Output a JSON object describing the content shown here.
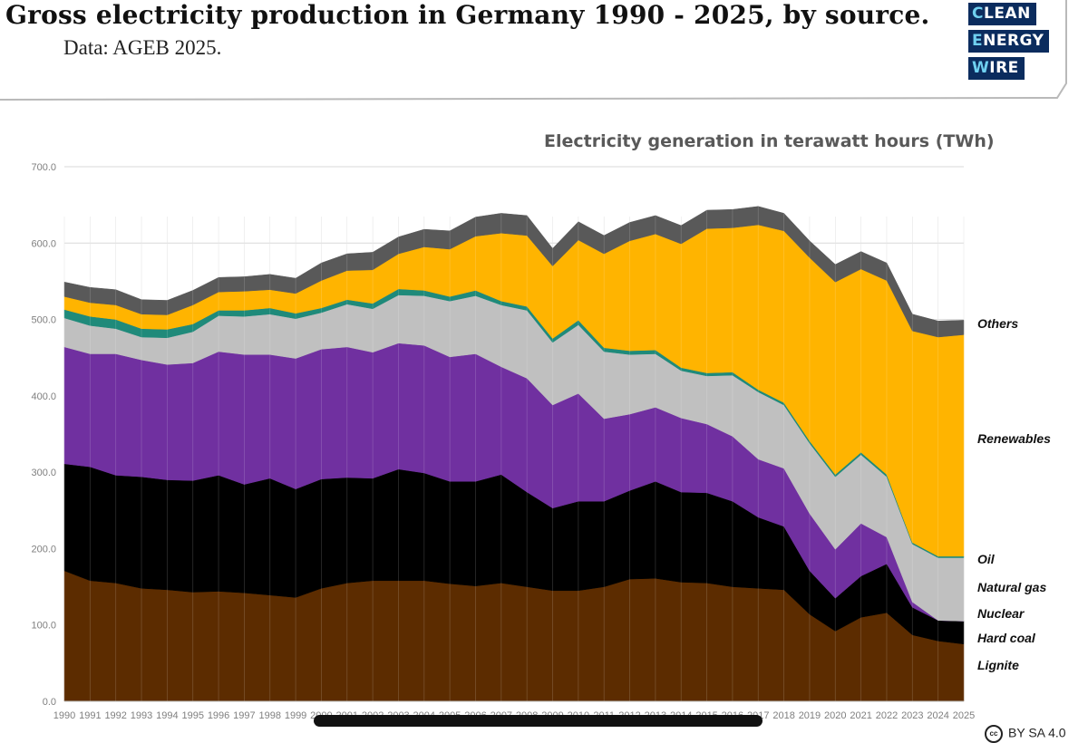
{
  "header": {
    "title": "Gross electricity production in Germany 1990 - 2025, by source.",
    "subtitle": "Data: AGEB 2025."
  },
  "logo": {
    "lines": [
      "CLEAN",
      "ENERGY",
      "WIRE"
    ]
  },
  "footer": {
    "license": "BY SA 4.0",
    "cc_icon": "cc"
  },
  "colors": {
    "lignite": "#5c2c00",
    "hard_coal": "#000000",
    "nuclear": "#7030a0",
    "natural_gas": "#c0c0c0",
    "oil": "#1f8a7a",
    "renewables": "#ffb400",
    "others": "#595959",
    "logo_bg": "#0b2c5e",
    "logo_highlight": "#6fd0f0"
  },
  "chart_data": {
    "type": "area",
    "stacked": true,
    "title": "Electricity generation in terawatt hours (TWh)",
    "xlabel": "",
    "ylabel": "",
    "ylim": [
      0,
      700
    ],
    "yticks": [
      "0.0",
      "100.0",
      "200.0",
      "300.0",
      "400.0",
      "500.0",
      "600.0",
      "700.0"
    ],
    "grid": true,
    "legend": "right, inline labels",
    "x": [
      "1990",
      "1991",
      "1992",
      "1993",
      "1994",
      "1995",
      "1996",
      "1997",
      "1998",
      "1999",
      "2000",
      "2001",
      "2002",
      "2003",
      "2004",
      "2005",
      "2006",
      "2007",
      "2008",
      "2009",
      "2010",
      "2011",
      "2012",
      "2013",
      "2014",
      "2015",
      "2016",
      "2017",
      "2018",
      "2019",
      "2020",
      "2021",
      "2022",
      "2023",
      "2024",
      "2025"
    ],
    "series": [
      {
        "name": "Lignite",
        "key": "lignite",
        "values": [
          171,
          158,
          155,
          148,
          146,
          143,
          144,
          142,
          139,
          136,
          148,
          155,
          158,
          158,
          158,
          154,
          151,
          155,
          150,
          145,
          145,
          150,
          160,
          161,
          156,
          155,
          150,
          148,
          146,
          114,
          92,
          110,
          116,
          87,
          79,
          75
        ]
      },
      {
        "name": "Hard coal",
        "key": "hard_coal",
        "values": [
          140,
          149,
          141,
          146,
          144,
          146,
          152,
          142,
          153,
          142,
          143,
          138,
          134,
          146,
          141,
          134,
          137,
          142,
          124,
          108,
          117,
          112,
          116,
          127,
          118,
          118,
          112,
          93,
          83,
          57,
          43,
          54,
          64,
          36,
          27,
          30
        ]
      },
      {
        "name": "Nuclear",
        "key": "nuclear",
        "values": [
          153,
          148,
          159,
          153,
          151,
          154,
          162,
          170,
          162,
          171,
          170,
          171,
          165,
          165,
          167,
          163,
          167,
          141,
          149,
          135,
          141,
          108,
          100,
          97,
          97,
          90,
          85,
          76,
          76,
          75,
          64,
          69,
          35,
          7,
          0,
          0
        ]
      },
      {
        "name": "Natural gas",
        "key": "natural_gas",
        "values": [
          38,
          37,
          33,
          30,
          35,
          41,
          47,
          50,
          53,
          52,
          48,
          56,
          57,
          63,
          65,
          73,
          76,
          81,
          89,
          82,
          90,
          88,
          78,
          70,
          62,
          63,
          80,
          88,
          83,
          92,
          95,
          90,
          79,
          76,
          82,
          83
        ]
      },
      {
        "name": "Oil",
        "key": "oil",
        "values": [
          11,
          12,
          12,
          11,
          11,
          10,
          7,
          8,
          8,
          7,
          6,
          6,
          7,
          8,
          7,
          6,
          7,
          5,
          5,
          5,
          6,
          5,
          5,
          5,
          4,
          4,
          4,
          3,
          3,
          3,
          3,
          3,
          3,
          2,
          2,
          2
        ]
      },
      {
        "name": "Renewables",
        "key": "renewables",
        "values": [
          17,
          18,
          19,
          19,
          19,
          25,
          24,
          25,
          24,
          26,
          36,
          38,
          44,
          46,
          57,
          62,
          71,
          89,
          93,
          95,
          105,
          123,
          144,
          152,
          162,
          189,
          189,
          216,
          225,
          240,
          252,
          240,
          254,
          277,
          287,
          290
        ]
      },
      {
        "name": "Others",
        "key": "others",
        "values": [
          19,
          20,
          20,
          19,
          19,
          19,
          19,
          19,
          20,
          20,
          23,
          22,
          23,
          22,
          23,
          24,
          25,
          26,
          26,
          23,
          24,
          24,
          24,
          24,
          24,
          24,
          24,
          24,
          23,
          22,
          23,
          23,
          23,
          22,
          21,
          19
        ]
      }
    ]
  }
}
